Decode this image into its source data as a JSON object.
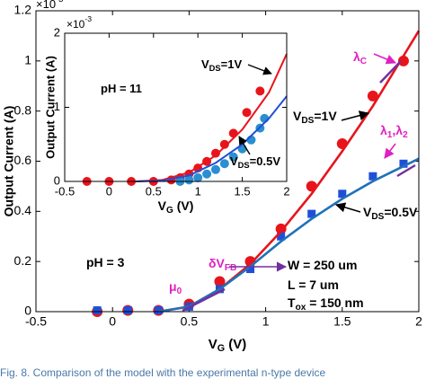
{
  "chart_data": [
    {
      "type": "scatter",
      "xlabel": [
        {
          "text": "V"
        },
        {
          "text": "G",
          "sub": true
        },
        {
          "text": " (V)"
        }
      ],
      "ylabel": "Output Current (A)",
      "y_multiplier": [
        {
          "text": "×10"
        },
        {
          "text": "-3",
          "sup": true
        }
      ],
      "xlim": [
        -0.5,
        2
      ],
      "xticks": [
        -0.5,
        0,
        0.5,
        1,
        1.5,
        2
      ],
      "ylim": [
        0,
        1.2
      ],
      "yticks": [
        0,
        0.2,
        0.4,
        0.6,
        0.8,
        1,
        1.2
      ],
      "series": [
        {
          "color": "#e8141b",
          "marker": "circle",
          "x": [
            -0.1,
            0.1,
            0.3,
            0.5,
            0.7,
            0.9,
            1.1,
            1.3,
            1.5,
            1.7,
            1.9
          ],
          "values": [
            0,
            0.005,
            0.005,
            0.03,
            0.12,
            0.2,
            0.33,
            0.5,
            0.67,
            0.86,
            1.0
          ]
        },
        {
          "color": "#1f4fd8",
          "marker": "square",
          "x": [
            -0.1,
            0.1,
            0.3,
            0.5,
            0.7,
            0.9,
            1.1,
            1.3,
            1.5,
            1.7,
            1.9
          ],
          "values": [
            0.005,
            0.005,
            0.005,
            0.02,
            0.09,
            0.17,
            0.3,
            0.39,
            0.47,
            0.54,
            0.59
          ]
        },
        {
          "color": "#e8141b",
          "marker": "line",
          "x": [
            0.3,
            0.5,
            0.7,
            0.9,
            1.1,
            1.3,
            1.5,
            1.7,
            1.9,
            2
          ],
          "values": [
            0,
            0.02,
            0.09,
            0.19,
            0.32,
            0.47,
            0.64,
            0.82,
            1.02,
            1.12
          ]
        },
        {
          "color": "#1f72b8",
          "marker": "line",
          "x": [
            0.3,
            0.5,
            0.7,
            0.9,
            1.1,
            1.3,
            1.5,
            1.7,
            1.9,
            2
          ],
          "values": [
            0,
            0.02,
            0.09,
            0.18,
            0.28,
            0.37,
            0.45,
            0.52,
            0.58,
            0.61
          ]
        }
      ],
      "annotations": [
        {
          "color": "#e020c0",
          "parts": [
            {
              "text": "λ"
            },
            {
              "text": "C",
              "sub": true
            }
          ]
        },
        {
          "color": "#e020c0",
          "parts": [
            {
              "text": "λ"
            },
            {
              "text": "1",
              "sub": true
            },
            {
              "text": ",λ"
            },
            {
              "text": "2",
              "sub": true
            }
          ]
        },
        {
          "color": "#000000",
          "parts": [
            {
              "text": "V"
            },
            {
              "text": "DS",
              "sub": true
            },
            {
              "text": "=1V"
            }
          ]
        },
        {
          "color": "#000000",
          "parts": [
            {
              "text": "V"
            },
            {
              "text": "DS",
              "sub": true
            },
            {
              "text": "=0.5V"
            }
          ]
        },
        {
          "color": "#e020c0",
          "parts": [
            {
              "text": "δV"
            },
            {
              "text": "FB",
              "sub": true
            }
          ]
        },
        {
          "color": "#e020c0",
          "parts": [
            {
              "text": "μ"
            },
            {
              "text": "0",
              "sub": true
            }
          ]
        },
        {
          "color": "#000000",
          "parts": [
            {
              "text": "pH = 3"
            }
          ]
        },
        {
          "color": "#000000",
          "parts": [
            {
              "text": "W = 250 um"
            }
          ]
        },
        {
          "color": "#000000",
          "parts": [
            {
              "text": "L = 7 um"
            }
          ]
        },
        {
          "color": "#000000",
          "parts": [
            {
              "text": "T"
            },
            {
              "text": "ox",
              "sub": true
            },
            {
              "text": " = 150 nm"
            }
          ]
        }
      ]
    },
    {
      "type": "scatter",
      "xlabel": [
        {
          "text": "V"
        },
        {
          "text": "G",
          "sub": true
        },
        {
          "text": " (V)"
        }
      ],
      "ylabel": "Output Current (A)",
      "y_multiplier": [
        {
          "text": "×10"
        },
        {
          "text": "-3",
          "sup": true
        }
      ],
      "xlim": [
        -0.5,
        2
      ],
      "xticks": [
        -0.5,
        0,
        0.5,
        1,
        1.5,
        2
      ],
      "ylim": [
        0,
        2
      ],
      "yticks": [
        0,
        1,
        2
      ],
      "series": [
        {
          "color": "#e8141b",
          "marker": "circle",
          "x": [
            -0.25,
            0,
            0.25,
            0.5,
            0.7,
            0.8,
            0.9,
            1,
            1.1,
            1.2,
            1.3,
            1.4,
            1.55,
            1.7
          ],
          "values": [
            0,
            0,
            0,
            0,
            0.02,
            0.05,
            0.1,
            0.18,
            0.27,
            0.38,
            0.5,
            0.65,
            0.93,
            1.22
          ]
        },
        {
          "color": "#2a8fd0",
          "marker": "circle",
          "x": [
            0.8,
            0.9,
            1,
            1.1,
            1.2,
            1.3,
            1.4,
            1.5,
            1.6,
            1.7,
            1.75
          ],
          "values": [
            0,
            0.02,
            0.05,
            0.1,
            0.16,
            0.24,
            0.33,
            0.44,
            0.56,
            0.72,
            0.85
          ]
        },
        {
          "color": "#e8141b",
          "marker": "line",
          "x": [
            0.3,
            0.6,
            0.9,
            1.2,
            1.5,
            1.8,
            2
          ],
          "values": [
            0,
            0.02,
            0.12,
            0.35,
            0.7,
            1.2,
            1.72
          ]
        },
        {
          "color": "#1f4fd8",
          "marker": "line",
          "x": [
            0.3,
            0.6,
            0.9,
            1.2,
            1.5,
            1.8,
            2
          ],
          "values": [
            0,
            0.01,
            0.08,
            0.25,
            0.5,
            0.85,
            1.15
          ]
        }
      ],
      "annotations": [
        {
          "color": "#000000",
          "parts": [
            {
              "text": "pH = 11"
            }
          ]
        },
        {
          "color": "#000000",
          "parts": [
            {
              "text": "V"
            },
            {
              "text": "DS",
              "sub": true
            },
            {
              "text": "=1V"
            }
          ]
        },
        {
          "color": "#000000",
          "parts": [
            {
              "text": "V"
            },
            {
              "text": "DS",
              "sub": true
            },
            {
              "text": "=0.5V"
            }
          ]
        }
      ]
    }
  ],
  "caption": "Fig. 8.    Comparison of the model with the experimental n-type device"
}
